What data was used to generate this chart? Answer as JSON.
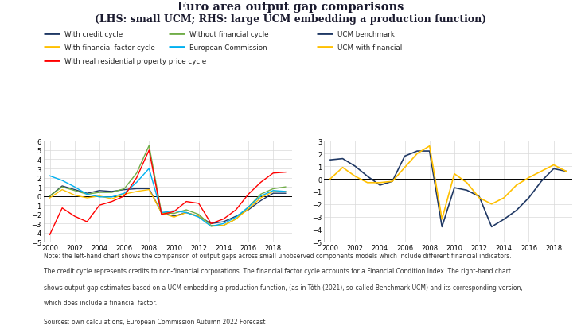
{
  "title_line1": "Euro area output gap comparisons",
  "title_line2": "(LHS: small UCM; RHS: large UCM embedding a production function)",
  "note_line1": "Note: the left-hand chart shows the comparison of output gaps across small unobserved components models which include different financial indicators.",
  "note_line2": "The credit cycle represents credits to non-financial corporations. The financial factor cycle accounts for a Financial Condition Index. The right-hand chart",
  "note_line3": "shows output gap estimates based on a UCM embedding a production function, (as in Tóth (2021), so-called Benchmark UCM) and its corresponding version,",
  "note_line4": "which does include a financial factor.",
  "sources": "Sources: own calculations, European Commission Autumn 2022 Forecast",
  "years": [
    2000,
    2001,
    2002,
    2003,
    2004,
    2005,
    2006,
    2007,
    2008,
    2009,
    2010,
    2011,
    2012,
    2013,
    2014,
    2015,
    2016,
    2017,
    2018,
    2019
  ],
  "lhs": {
    "with_credit_cycle": [
      0.0,
      1.1,
      0.7,
      0.3,
      0.6,
      0.5,
      0.7,
      0.8,
      0.8,
      -1.8,
      -2.2,
      -1.8,
      -2.2,
      -3.0,
      -2.8,
      -2.2,
      -1.5,
      -0.5,
      0.3,
      0.3
    ],
    "without_financial": [
      0.0,
      1.0,
      0.6,
      0.2,
      0.4,
      0.4,
      0.8,
      2.5,
      5.5,
      -1.8,
      -1.9,
      -1.5,
      -2.0,
      -3.2,
      -3.2,
      -2.5,
      -1.2,
      0.2,
      0.8,
      1.0
    ],
    "with_fin_factor": [
      -0.2,
      0.7,
      0.1,
      -0.2,
      0.0,
      -0.3,
      0.2,
      0.5,
      0.7,
      -1.8,
      -2.3,
      -1.8,
      -2.2,
      -3.3,
      -3.2,
      -2.5,
      -1.4,
      -0.2,
      0.5,
      0.5
    ],
    "european_commission": [
      2.2,
      1.7,
      1.0,
      0.2,
      -0.1,
      -0.1,
      0.3,
      1.5,
      3.0,
      -1.8,
      -1.6,
      -1.8,
      -2.3,
      -3.3,
      -3.0,
      -2.3,
      -1.2,
      0.0,
      0.6,
      0.5
    ],
    "with_res_prop": [
      -4.2,
      -1.3,
      -2.2,
      -2.8,
      -1.0,
      -0.6,
      0.0,
      2.0,
      5.0,
      -2.0,
      -1.7,
      -0.6,
      -0.8,
      -3.0,
      -2.5,
      -1.5,
      0.2,
      1.5,
      2.5,
      2.6
    ]
  },
  "rhs": {
    "ucm_benchmark": [
      1.5,
      1.6,
      1.0,
      0.2,
      -0.5,
      -0.2,
      1.8,
      2.2,
      2.2,
      -3.8,
      -0.7,
      -0.9,
      -1.4,
      -3.8,
      -3.2,
      -2.5,
      -1.5,
      -0.2,
      0.8,
      0.6
    ],
    "ucm_financial": [
      0.0,
      0.9,
      0.2,
      -0.3,
      -0.3,
      -0.2,
      0.9,
      2.0,
      2.6,
      -3.2,
      0.4,
      -0.3,
      -1.5,
      -2.0,
      -1.5,
      -0.5,
      0.1,
      0.6,
      1.1,
      0.6
    ]
  },
  "lhs_ylim": [
    -5,
    6
  ],
  "rhs_ylim": [
    -5,
    3
  ],
  "lhs_yticks": [
    -5,
    -4,
    -3,
    -2,
    -1,
    0,
    1,
    2,
    3,
    4,
    5,
    6
  ],
  "rhs_yticks": [
    -5,
    -4,
    -3,
    -2,
    -1,
    0,
    1,
    2,
    3
  ],
  "colors": {
    "with_credit_cycle": "#1F3864",
    "without_financial": "#70AD47",
    "with_fin_factor": "#FFC000",
    "european_commission": "#00B0F0",
    "with_res_prop": "#FF0000",
    "ucm_benchmark": "#1F3864",
    "ucm_financial": "#FFC000"
  },
  "background_color": "#ffffff",
  "grid_color": "#d9d9d9"
}
